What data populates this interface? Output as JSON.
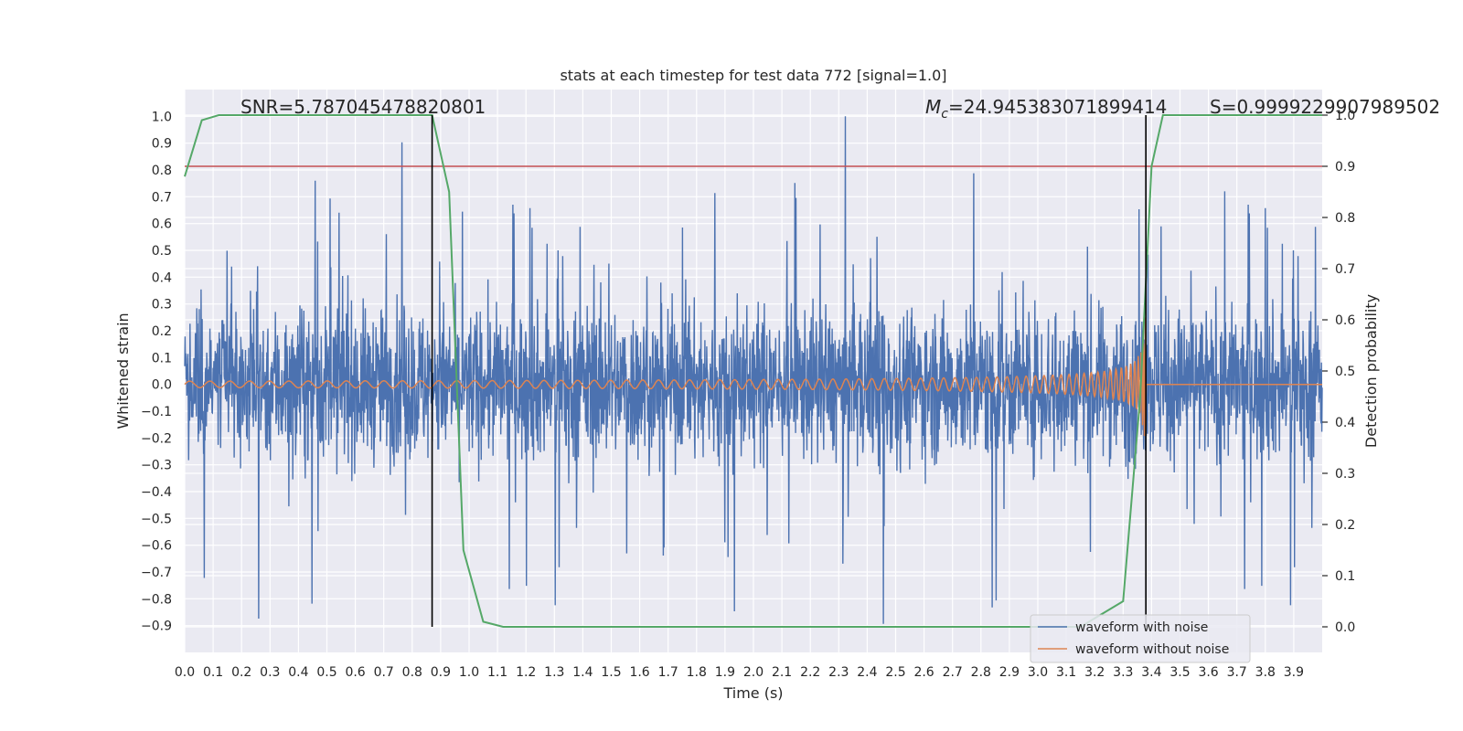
{
  "chart_data": {
    "type": "line",
    "title": "stats at each timestep for test data 772 [signal=1.0]",
    "xlabel": "Time (s)",
    "ylabel_left": "Whitened strain",
    "ylabel_right": "Detection probability",
    "xlim": [
      0.0,
      4.0
    ],
    "ylim_left": [
      -1.0,
      1.1
    ],
    "ylim_right": [
      -0.05,
      1.05
    ],
    "x_ticks": [
      "0.0",
      "0.1",
      "0.2",
      "0.3",
      "0.4",
      "0.5",
      "0.6",
      "0.7",
      "0.8",
      "0.9",
      "1.0",
      "1.1",
      "1.2",
      "1.3",
      "1.4",
      "1.5",
      "1.6",
      "1.7",
      "1.8",
      "1.9",
      "2.0",
      "2.1",
      "2.2",
      "2.3",
      "2.4",
      "2.5",
      "2.6",
      "2.7",
      "2.8",
      "2.9",
      "3.0",
      "3.1",
      "3.2",
      "3.3",
      "3.4",
      "3.5",
      "3.6",
      "3.7",
      "3.8",
      "3.9"
    ],
    "y_ticks_left": [
      "1.0",
      "0.9",
      "0.8",
      "0.7",
      "0.6",
      "0.5",
      "0.4",
      "0.3",
      "0.2",
      "0.1",
      "0.0",
      "−0.1",
      "−0.2",
      "−0.3",
      "−0.4",
      "−0.5",
      "−0.6",
      "−0.7",
      "−0.8",
      "−0.9"
    ],
    "y_ticks_right": [
      "1.0",
      "0.9",
      "0.8",
      "0.7",
      "0.6",
      "0.5",
      "0.4",
      "0.3",
      "0.2",
      "0.1",
      "0.0"
    ],
    "series": [
      {
        "name": "waveform with noise",
        "color": "#4c72b0",
        "description": "whitened noisy strain, roughly -0.9 to 1.0",
        "amplitude_range": [
          -0.9,
          1.0
        ]
      },
      {
        "name": "waveform without noise",
        "color": "#dd8452",
        "description": "chirp signal growing in amplitude toward merger at ~3.38 s",
        "merger_time": 3.38,
        "peak_amplitude": 0.28
      },
      {
        "name": "detection probability",
        "color": "#55a868",
        "axis": "right",
        "x": [
          0.0,
          0.06,
          0.12,
          0.2,
          0.4,
          0.6,
          0.8,
          0.87,
          0.93,
          0.98,
          1.0,
          1.05,
          1.12,
          1.5,
          2.0,
          2.5,
          3.0,
          3.15,
          3.3,
          3.36,
          3.4,
          3.44,
          3.6,
          4.0
        ],
        "values": [
          0.88,
          0.99,
          1.0,
          1.0,
          1.0,
          1.0,
          1.0,
          1.0,
          0.85,
          0.15,
          0.11,
          0.01,
          0.0,
          0.0,
          0.0,
          0.0,
          0.0,
          0.0,
          0.05,
          0.45,
          0.9,
          1.0,
          1.0,
          1.0
        ]
      }
    ],
    "threshold": {
      "value": 0.9,
      "axis": "right",
      "color": "#c44e52"
    },
    "vlines": [
      0.87,
      3.38
    ],
    "annotations": {
      "snr": "SNR=5.787045478820801",
      "mc_symbol": "M",
      "mc_sub": "c",
      "mc_value": "=24.945383071899414",
      "s": "S=0.9999229907989502"
    },
    "legend": {
      "position": "lower-right",
      "entries": [
        "waveform with noise",
        "waveform without noise"
      ]
    }
  }
}
